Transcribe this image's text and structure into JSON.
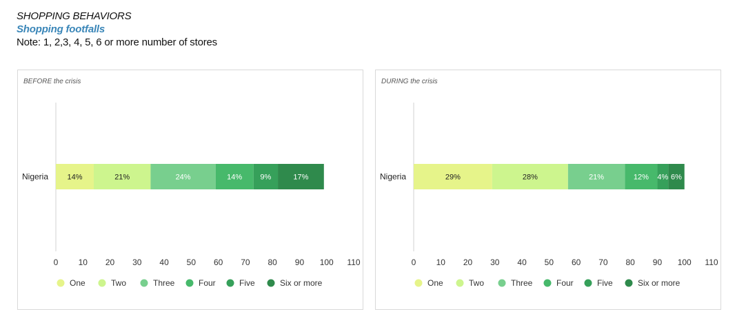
{
  "header": {
    "title": "SHOPPING BEHAVIORS",
    "subtitle": "Shopping footfalls",
    "note": "Note: 1, 2,3, 4, 5, 6 or more number of stores"
  },
  "chart_data": [
    {
      "type": "bar",
      "orientation": "horizontal",
      "stacked": true,
      "title": "BEFORE the crisis",
      "categories": [
        "Nigeria"
      ],
      "series": [
        {
          "name": "One",
          "values": [
            14
          ],
          "label": "14%",
          "color": "#e6f48a"
        },
        {
          "name": "Two",
          "values": [
            21
          ],
          "label": "21%",
          "color": "#cdf58e"
        },
        {
          "name": "Three",
          "values": [
            24
          ],
          "label": "24%",
          "color": "#78cf8e"
        },
        {
          "name": "Four",
          "values": [
            14
          ],
          "label": "14%",
          "color": "#47b96b"
        },
        {
          "name": "Five",
          "values": [
            9
          ],
          "label": "9%",
          "color": "#36a05a"
        },
        {
          "name": "Six or more",
          "values": [
            17
          ],
          "label": "17%",
          "color": "#2f8a4c"
        }
      ],
      "xlim": [
        0,
        110
      ],
      "xticks": [
        "0",
        "10",
        "20",
        "30",
        "40",
        "50",
        "60",
        "70",
        "80",
        "90",
        "100",
        "110"
      ],
      "legend_position": "bottom"
    },
    {
      "type": "bar",
      "orientation": "horizontal",
      "stacked": true,
      "title": "DURING the crisis",
      "categories": [
        "Nigeria"
      ],
      "series": [
        {
          "name": "One",
          "values": [
            29
          ],
          "label": "29%",
          "color": "#e6f48a"
        },
        {
          "name": "Two",
          "values": [
            28
          ],
          "label": "28%",
          "color": "#cdf58e"
        },
        {
          "name": "Three",
          "values": [
            21
          ],
          "label": "21%",
          "color": "#78cf8e"
        },
        {
          "name": "Four",
          "values": [
            12
          ],
          "label": "12%",
          "color": "#47b96b"
        },
        {
          "name": "Five",
          "values": [
            4
          ],
          "label": "4%",
          "color": "#36a05a"
        },
        {
          "name": "Six or more",
          "values": [
            6
          ],
          "label": "6%",
          "color": "#2f8a4c"
        }
      ],
      "xlim": [
        0,
        110
      ],
      "xticks": [
        "0",
        "10",
        "20",
        "30",
        "40",
        "50",
        "60",
        "70",
        "80",
        "90",
        "100",
        "110"
      ],
      "legend_position": "bottom"
    }
  ]
}
